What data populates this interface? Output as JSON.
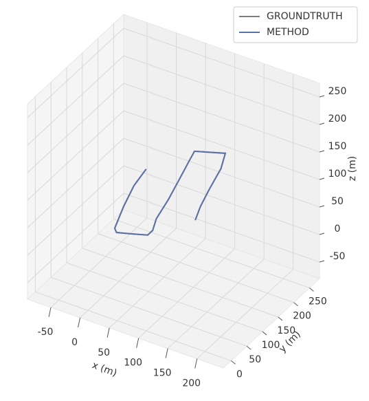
{
  "chart_data": {
    "type": "line3d",
    "xlabel": "x (m)",
    "ylabel": "y (m)",
    "zlabel": "z (m)",
    "xlim": [
      -90,
      245
    ],
    "ylim": [
      -25,
      282
    ],
    "zlim": [
      -80,
      275
    ],
    "xticks": [
      -50,
      0,
      50,
      100,
      150,
      200
    ],
    "yticks": [
      0,
      50,
      100,
      150,
      200,
      250
    ],
    "zticks": [
      -50,
      0,
      50,
      100,
      150,
      200,
      250
    ],
    "grid": true,
    "legend": "upper right",
    "series": [
      {
        "name": "GROUNDTRUTH",
        "color": "#7f7f7f",
        "x": [
          -43,
          -36,
          -21,
          -3,
          5,
          24,
          47,
          47,
          36,
          40,
          41,
          44,
          52,
          67,
          93,
          108,
          121,
          133,
          145
        ],
        "y": [
          266,
          214,
          153,
          91,
          82,
          91,
          103,
          119,
          151,
          182,
          216,
          240,
          243,
          251,
          265,
          223,
          162,
          111,
          72
        ],
        "z": [
          20,
          20,
          20,
          20,
          20,
          20,
          20,
          20,
          20,
          40,
          60,
          80,
          100,
          100,
          100,
          100,
          100,
          100,
          100
        ]
      },
      {
        "name": "METHOD",
        "color": "#5872a8",
        "x": [
          -43,
          -36,
          -21,
          -3,
          5,
          24,
          47,
          47,
          36,
          40,
          41,
          44,
          52,
          67,
          93,
          108,
          121,
          133,
          145
        ],
        "y": [
          266,
          214,
          153,
          91,
          82,
          91,
          103,
          119,
          151,
          182,
          216,
          240,
          243,
          251,
          265,
          223,
          162,
          111,
          72
        ],
        "z": [
          20,
          20,
          20,
          20,
          20,
          20,
          20,
          20,
          20,
          40,
          60,
          80,
          100,
          100,
          100,
          100,
          100,
          100,
          100
        ]
      }
    ]
  }
}
